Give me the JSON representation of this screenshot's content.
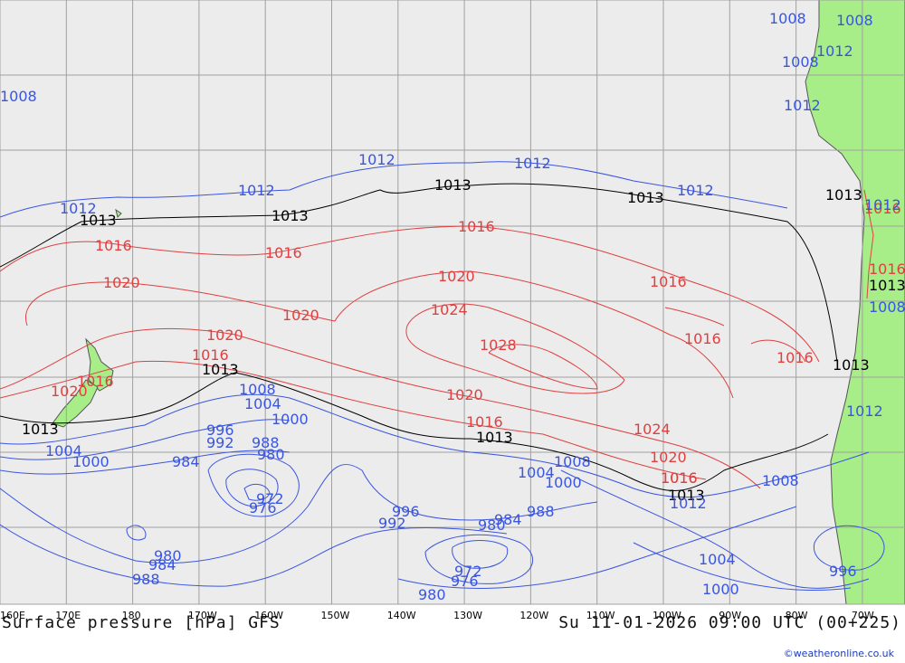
{
  "title": "Surface pressure [hPa] GFS",
  "valid_time": "Su 11-01-2026 09:00 UTC (00+225)",
  "credit": "©weatheronline.co.uk",
  "colors": {
    "ocean": "#ececec",
    "land": "#a8ee88",
    "grid": "#a0a0a0",
    "low": "#3a55e0",
    "high": "#e04040",
    "neutral": "#000000"
  },
  "longitude_ticks": [
    "160E",
    "170E",
    "180",
    "170W",
    "160W",
    "150W",
    "140W",
    "130W",
    "120W",
    "110W",
    "100W",
    "90W",
    "80W",
    "70W"
  ],
  "isobar_labels": [
    {
      "text": "1008",
      "kind": "low"
    },
    {
      "text": "1012",
      "kind": "low"
    },
    {
      "text": "1013",
      "kind": "mid"
    },
    {
      "text": "1012",
      "kind": "low"
    },
    {
      "text": "1013",
      "kind": "mid"
    },
    {
      "text": "1012",
      "kind": "low"
    },
    {
      "text": "1013",
      "kind": "mid"
    },
    {
      "text": "1012",
      "kind": "low"
    },
    {
      "text": "1013",
      "kind": "mid"
    },
    {
      "text": "1012",
      "kind": "low"
    },
    {
      "text": "1016",
      "kind": "high"
    },
    {
      "text": "1016",
      "kind": "high"
    },
    {
      "text": "1016",
      "kind": "high"
    },
    {
      "text": "1020",
      "kind": "high"
    },
    {
      "text": "1020",
      "kind": "high"
    },
    {
      "text": "1020",
      "kind": "high"
    },
    {
      "text": "1024",
      "kind": "high"
    },
    {
      "text": "1028",
      "kind": "high"
    },
    {
      "text": "1016",
      "kind": "high"
    },
    {
      "text": "1016",
      "kind": "high"
    },
    {
      "text": "1016",
      "kind": "high"
    },
    {
      "text": "1020",
      "kind": "high"
    },
    {
      "text": "1016",
      "kind": "high"
    },
    {
      "text": "1020",
      "kind": "high"
    },
    {
      "text": "1016",
      "kind": "high"
    },
    {
      "text": "1013",
      "kind": "mid"
    },
    {
      "text": "1008",
      "kind": "low"
    },
    {
      "text": "1004",
      "kind": "low"
    },
    {
      "text": "1000",
      "kind": "low"
    },
    {
      "text": "996",
      "kind": "low"
    },
    {
      "text": "992",
      "kind": "low"
    },
    {
      "text": "988",
      "kind": "low"
    },
    {
      "text": "980",
      "kind": "low"
    },
    {
      "text": "984",
      "kind": "low"
    },
    {
      "text": "972",
      "kind": "low"
    },
    {
      "text": "976",
      "kind": "low"
    },
    {
      "text": "1013",
      "kind": "mid"
    },
    {
      "text": "1004",
      "kind": "low"
    },
    {
      "text": "1000",
      "kind": "low"
    },
    {
      "text": "1020",
      "kind": "high"
    },
    {
      "text": "1016",
      "kind": "high"
    },
    {
      "text": "1016",
      "kind": "high"
    },
    {
      "text": "1024",
      "kind": "high"
    },
    {
      "text": "1013",
      "kind": "mid"
    },
    {
      "text": "1004",
      "kind": "low"
    },
    {
      "text": "1008",
      "kind": "low"
    },
    {
      "text": "1000",
      "kind": "low"
    },
    {
      "text": "1020",
      "kind": "high"
    },
    {
      "text": "1016",
      "kind": "high"
    },
    {
      "text": "1013",
      "kind": "mid"
    },
    {
      "text": "1012",
      "kind": "low"
    },
    {
      "text": "996",
      "kind": "low"
    },
    {
      "text": "992",
      "kind": "low"
    },
    {
      "text": "984",
      "kind": "low"
    },
    {
      "text": "988",
      "kind": "low"
    },
    {
      "text": "980",
      "kind": "low"
    },
    {
      "text": "972",
      "kind": "low"
    },
    {
      "text": "976",
      "kind": "low"
    },
    {
      "text": "980",
      "kind": "low"
    },
    {
      "text": "980",
      "kind": "low"
    },
    {
      "text": "984",
      "kind": "low"
    },
    {
      "text": "988",
      "kind": "low"
    },
    {
      "text": "1008",
      "kind": "low"
    },
    {
      "text": "1004",
      "kind": "low"
    },
    {
      "text": "1000",
      "kind": "low"
    },
    {
      "text": "996",
      "kind": "low"
    },
    {
      "text": "1013",
      "kind": "mid"
    },
    {
      "text": "1016",
      "kind": "high"
    },
    {
      "text": "1012",
      "kind": "low"
    },
    {
      "text": "1013",
      "kind": "mid"
    },
    {
      "text": "1016",
      "kind": "high"
    },
    {
      "text": "1013",
      "kind": "mid"
    },
    {
      "text": "1008",
      "kind": "low"
    },
    {
      "text": "1012",
      "kind": "low"
    },
    {
      "text": "1008",
      "kind": "low"
    },
    {
      "text": "1008",
      "kind": "low"
    },
    {
      "text": "1012",
      "kind": "low"
    },
    {
      "text": "1008",
      "kind": "low"
    },
    {
      "text": "1012",
      "kind": "low"
    }
  ]
}
